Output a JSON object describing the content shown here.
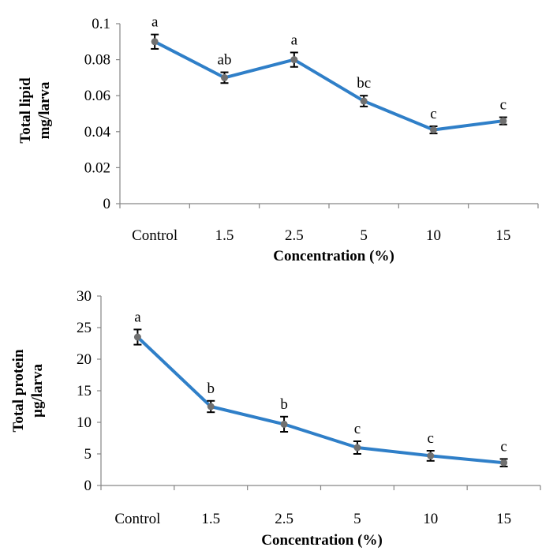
{
  "chart_data": [
    {
      "type": "line",
      "title": "",
      "xlabel": "Concentration (%)",
      "ylabel_lines": [
        "Total lipid",
        "mg/larva"
      ],
      "categories": [
        "Control",
        "1.5",
        "2.5",
        "5",
        "10",
        "15"
      ],
      "y_ticks": [
        "0",
        "0.02",
        "0.04",
        "0.06",
        "0.08",
        "0.1"
      ],
      "ylim": [
        0,
        0.1
      ],
      "grid": false,
      "legend": "none",
      "series_color": "#2f7fc8",
      "point_color": "#707070",
      "series": [
        {
          "values": [
            0.09,
            0.07,
            0.08,
            0.057,
            0.041,
            0.046
          ],
          "errors": [
            0.004,
            0.003,
            0.004,
            0.003,
            0.002,
            0.002
          ],
          "letters": [
            "a",
            "ab",
            "a",
            "bc",
            "c",
            "c"
          ]
        }
      ]
    },
    {
      "type": "line",
      "title": "",
      "xlabel": "Concentration (%)",
      "ylabel_lines": [
        "Total protein",
        "µg/larva"
      ],
      "categories": [
        "Control",
        "1.5",
        "2.5",
        "5",
        "10",
        "15"
      ],
      "y_ticks": [
        "0",
        "5",
        "10",
        "15",
        "20",
        "25",
        "30"
      ],
      "ylim": [
        0,
        30
      ],
      "grid": false,
      "legend": "none",
      "series_color": "#2f7fc8",
      "point_color": "#707070",
      "series": [
        {
          "values": [
            23.5,
            12.5,
            9.7,
            6.0,
            4.7,
            3.6
          ],
          "errors": [
            1.2,
            0.9,
            1.2,
            1.0,
            0.8,
            0.6
          ],
          "letters": [
            "a",
            "b",
            "b",
            "c",
            "c",
            "c"
          ]
        }
      ]
    }
  ]
}
